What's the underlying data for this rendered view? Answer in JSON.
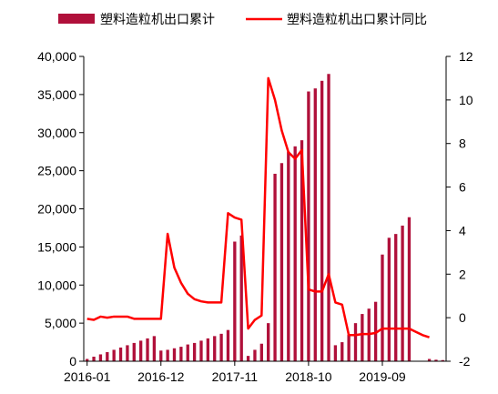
{
  "chart_data": {
    "type": "bar+line",
    "legend_position": "top",
    "grid": false,
    "colors": {
      "bar": "#B0103A",
      "line": "#FF0000"
    },
    "x_tick_labels": [
      "2016-01",
      "2016-12",
      "2017-11",
      "2018-10",
      "2019-09"
    ],
    "x_tick_indices": [
      0,
      11,
      22,
      33,
      44
    ],
    "y_left": {
      "ylim": [
        0,
        40000
      ],
      "ticks": [
        "0",
        "5,000",
        "10,000",
        "15,000",
        "20,000",
        "25,000",
        "30,000",
        "35,000",
        "40,000"
      ]
    },
    "y_right": {
      "ylim": [
        -2,
        12
      ],
      "ticks": [
        "-2",
        "0",
        "2",
        "4",
        "6",
        "8",
        "10",
        "12"
      ]
    },
    "series": [
      {
        "name": "塑料造粒机出口累计",
        "type": "bar",
        "axis": "left",
        "values": [
          300,
          600,
          900,
          1200,
          1500,
          1800,
          2100,
          2400,
          2700,
          3000,
          3300,
          1400,
          1500,
          1700,
          1900,
          2200,
          2400,
          2700,
          3000,
          3300,
          3600,
          4100,
          15700,
          16500,
          700,
          1500,
          2300,
          5000,
          24600,
          26000,
          27500,
          28200,
          29000,
          35400,
          35800,
          36800,
          37700,
          2100,
          2500,
          3500,
          5000,
          6200,
          6900,
          7800,
          14000,
          16200,
          16700,
          17800,
          18900,
          0,
          0,
          300,
          200,
          150
        ],
        "value_labels": []
      },
      {
        "name": "塑料造粒机出口累计同比",
        "type": "line",
        "axis": "right",
        "x_start_index": 0,
        "values": [
          -0.05,
          -0.1,
          0.05,
          0.0,
          0.05,
          0.05,
          0.05,
          -0.05,
          -0.05,
          -0.05,
          -0.05,
          -0.05,
          3.85,
          2.3,
          1.6,
          1.1,
          0.85,
          0.75,
          0.7,
          0.7,
          0.7,
          4.8,
          4.6,
          4.5,
          -0.5,
          -0.1,
          0.1,
          11.0,
          10.0,
          8.6,
          7.6,
          7.3,
          7.7,
          1.3,
          1.2,
          1.2,
          2.0,
          0.7,
          0.6,
          -0.8,
          -0.8,
          -0.75,
          -0.75,
          -0.7,
          -0.5,
          -0.5,
          -0.5,
          -0.5,
          -0.5,
          -0.65,
          -0.8,
          -0.9
        ]
      }
    ]
  }
}
